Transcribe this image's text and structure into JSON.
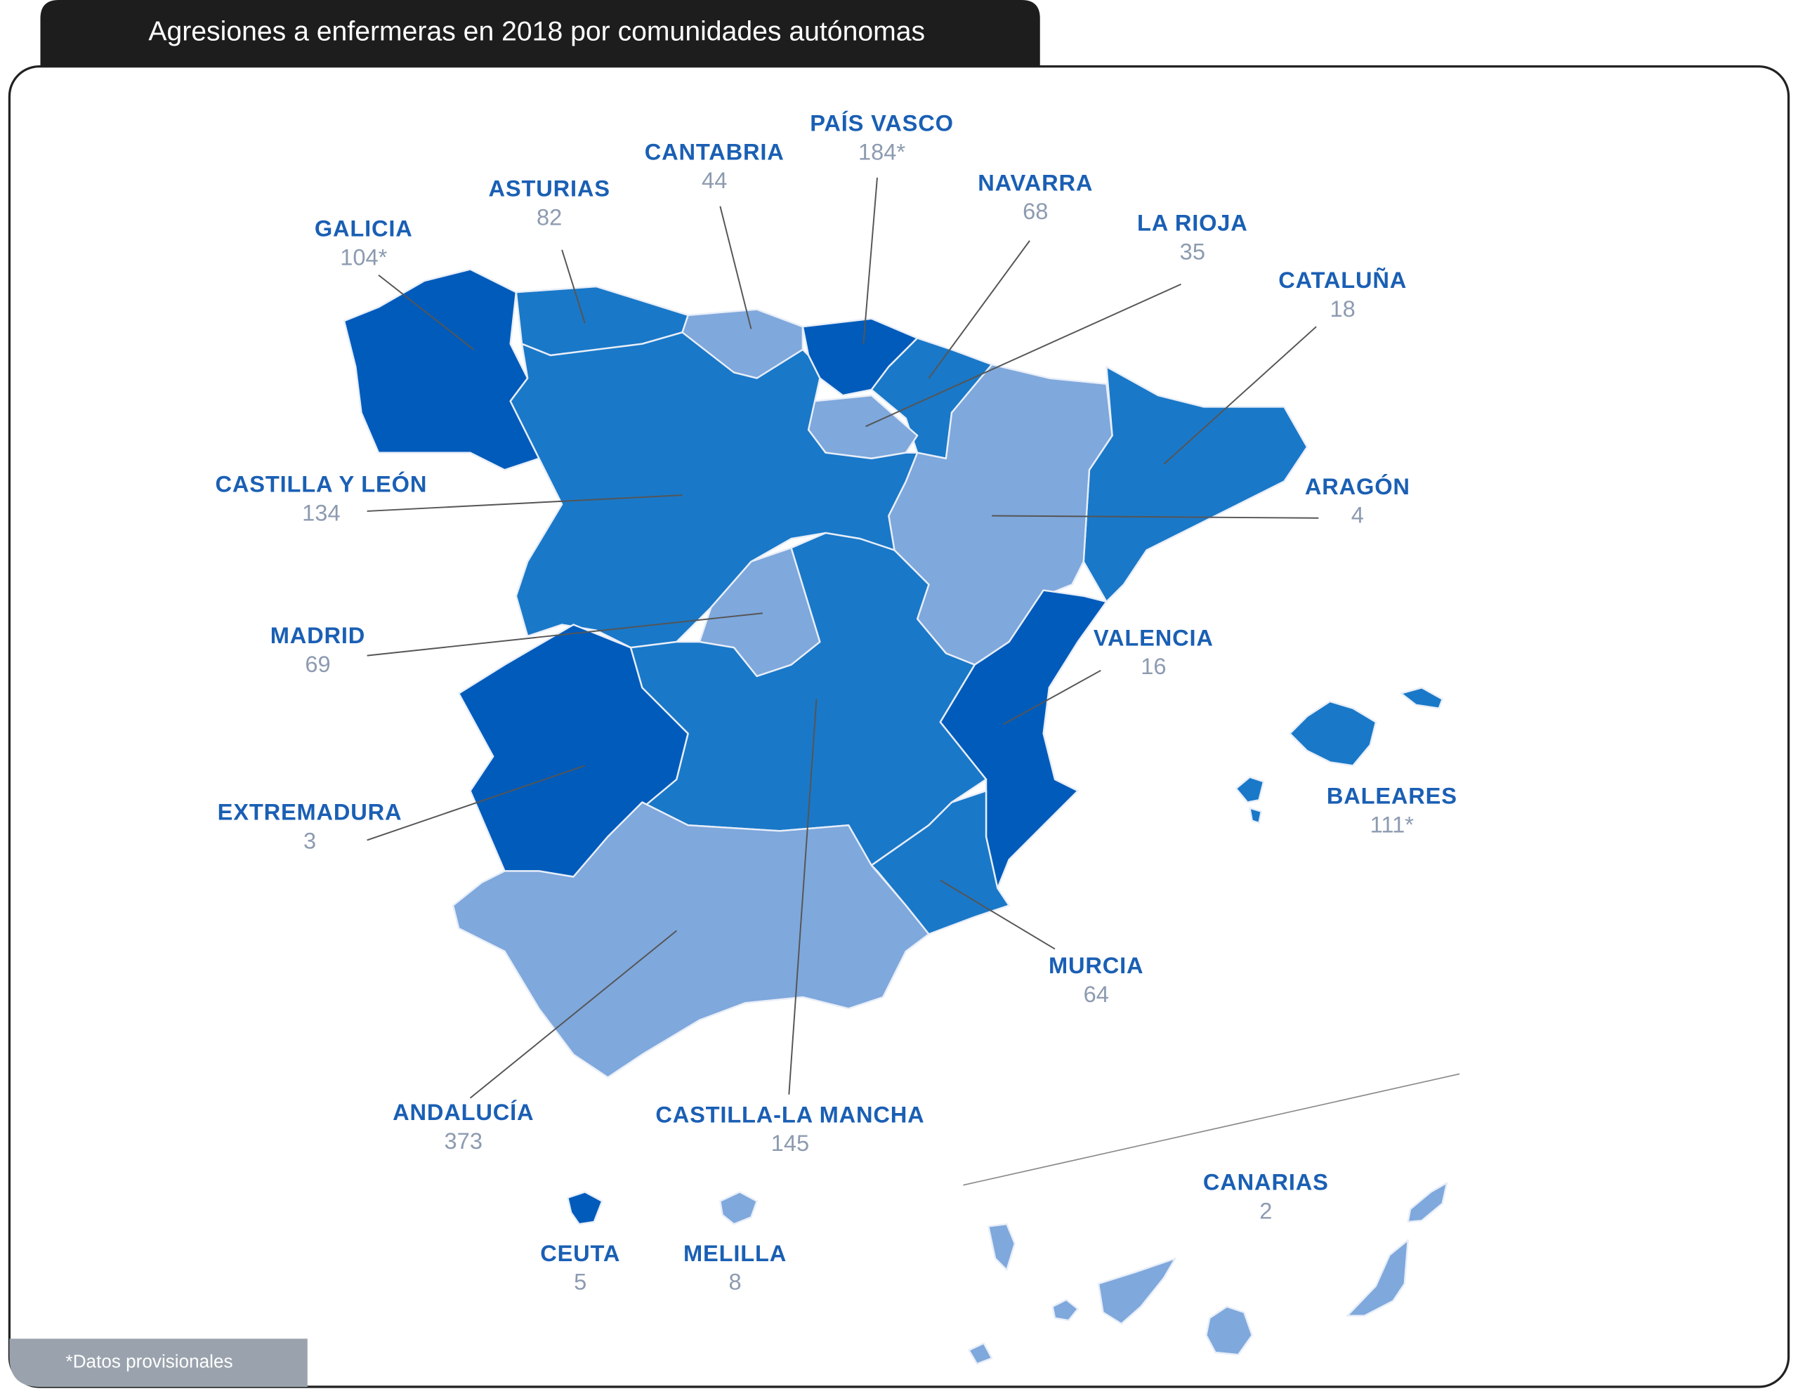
{
  "title": "Agresiones a enfermeras en 2018 por comunidades autónomas",
  "footnote": "*Datos provisionales",
  "regions": [
    {
      "name": "GALICIA",
      "value": 104,
      "value_label": "104*",
      "color": "#005bbb"
    },
    {
      "name": "ASTURIAS",
      "value": 82,
      "color": "#1a78c8"
    },
    {
      "name": "CANTABRIA",
      "value": 44,
      "color": "#7fa8dc"
    },
    {
      "name": "PAÍS VASCO",
      "value": 184,
      "value_label": "184*",
      "color": "#005bbb"
    },
    {
      "name": "NAVARRA",
      "value": 68,
      "color": "#1a78c8"
    },
    {
      "name": "LA RIOJA",
      "value": 35,
      "color": "#7fa8dc"
    },
    {
      "name": "CATALUÑA",
      "value": 18,
      "color": "#1a78c8"
    },
    {
      "name": "ARAGÓN",
      "value": 4,
      "color": "#7fa8dc"
    },
    {
      "name": "CASTILLA Y LEÓN",
      "value": 134,
      "color": "#1a78c8"
    },
    {
      "name": "MADRID",
      "value": 69,
      "color": "#7fa8dc"
    },
    {
      "name": "EXTREMADURA",
      "value": 3,
      "color": "#005bbb"
    },
    {
      "name": "VALENCIA",
      "value": 16,
      "color": "#005bbb"
    },
    {
      "name": "CASTILLA-LA MANCHA",
      "value": 145,
      "color": "#1a78c8"
    },
    {
      "name": "MURCIA",
      "value": 64,
      "color": "#1a78c8"
    },
    {
      "name": "ANDALUCÍA",
      "value": 373,
      "color": "#7fa8dc"
    },
    {
      "name": "BALEARES",
      "value": 111,
      "value_label": "111*",
      "color": "#1a78c8"
    },
    {
      "name": "CEUTA",
      "value": 5,
      "color": "#005bbb"
    },
    {
      "name": "MELILLA",
      "value": 8,
      "color": "#7fa8dc"
    },
    {
      "name": "CANARIAS",
      "value": 2,
      "color": "#7fa8dc"
    }
  ]
}
